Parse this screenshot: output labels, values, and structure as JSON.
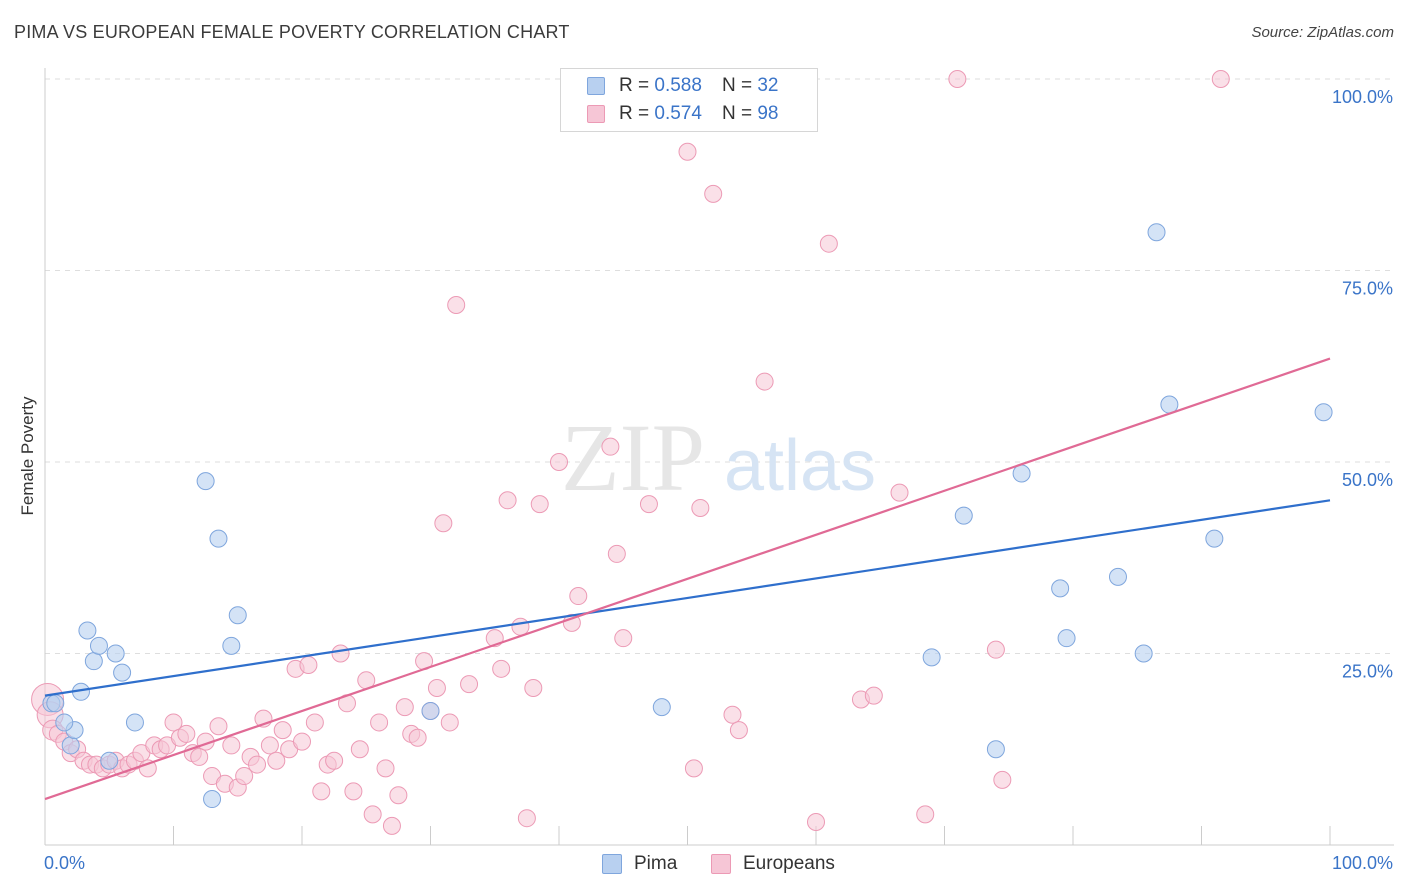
{
  "title": "PIMA VS EUROPEAN FEMALE POVERTY CORRELATION CHART",
  "source": "Source: ZipAtlas.com",
  "watermark": {
    "zip": "ZIP",
    "atlas": "atlas"
  },
  "legend_top": {
    "pima": {
      "r_label": "R =",
      "r_value": "0.588",
      "n_label": "N =",
      "n_value": "32"
    },
    "europeans": {
      "r_label": "R =",
      "r_value": "0.574",
      "n_label": "N =",
      "n_value": "98"
    }
  },
  "legend_bottom": {
    "pima": "Pima",
    "europeans": "Europeans"
  },
  "colors": {
    "pima_fill": "#b8d0f0",
    "pima_stroke": "#7fa6dd",
    "pima_line": "#2f6fcc",
    "eu_fill": "#f6c6d6",
    "eu_stroke": "#ec9ab5",
    "eu_line": "#e06a95",
    "tick_label": "#3a74c8",
    "grid": "#dedede"
  },
  "chart_data": {
    "type": "scatter",
    "title": "PIMA VS EUROPEAN FEMALE POVERTY CORRELATION CHART",
    "xlabel": "",
    "ylabel": "Female Poverty",
    "xlim": [
      0,
      100
    ],
    "ylim": [
      0,
      100
    ],
    "x_tick_labels": [
      "0.0%",
      "100.0%"
    ],
    "y_tick_labels": [
      "25.0%",
      "50.0%",
      "75.0%",
      "100.0%"
    ],
    "y_ticks": [
      25,
      50,
      75,
      100
    ],
    "grid": true,
    "legend_placement": "top-center and bottom-center",
    "series": [
      {
        "name": "Pima",
        "r": 0.588,
        "n": 32,
        "trend": {
          "x": [
            0,
            100
          ],
          "y": [
            19.5,
            45
          ]
        },
        "points": [
          [
            0.5,
            18.5
          ],
          [
            0.8,
            18.5
          ],
          [
            2.0,
            13
          ],
          [
            2.3,
            15
          ],
          [
            2.8,
            20
          ],
          [
            3.3,
            28
          ],
          [
            3.8,
            24
          ],
          [
            4.2,
            26
          ],
          [
            5.5,
            25
          ],
          [
            6.0,
            22.5
          ],
          [
            7.0,
            16
          ],
          [
            12.5,
            47.5
          ],
          [
            13.0,
            6
          ],
          [
            13.5,
            40
          ],
          [
            14.5,
            26
          ],
          [
            15.0,
            30
          ],
          [
            5.0,
            11
          ],
          [
            30.0,
            17.5
          ],
          [
            48.0,
            18
          ],
          [
            69.0,
            24.5
          ],
          [
            71.5,
            43
          ],
          [
            74.0,
            12.5
          ],
          [
            76.0,
            48.5
          ],
          [
            79.0,
            33.5
          ],
          [
            79.5,
            27
          ],
          [
            83.5,
            35
          ],
          [
            85.5,
            25
          ],
          [
            86.5,
            80
          ],
          [
            87.5,
            57.5
          ],
          [
            91.0,
            40
          ],
          [
            99.5,
            56.5
          ],
          [
            1.5,
            16
          ]
        ]
      },
      {
        "name": "Europeans",
        "r": 0.574,
        "n": 98,
        "trend": {
          "x": [
            0,
            100
          ],
          "y": [
            6,
            63.5
          ]
        },
        "points": [
          [
            0.2,
            19
          ],
          [
            0.4,
            17
          ],
          [
            0.6,
            15
          ],
          [
            1.0,
            14.5
          ],
          [
            1.5,
            13.5
          ],
          [
            2.0,
            12
          ],
          [
            2.5,
            12.5
          ],
          [
            3.0,
            11
          ],
          [
            3.5,
            10.5
          ],
          [
            4.0,
            10.5
          ],
          [
            4.5,
            10
          ],
          [
            5.0,
            10.5
          ],
          [
            5.5,
            11
          ],
          [
            6.0,
            10
          ],
          [
            6.5,
            10.5
          ],
          [
            7.0,
            11
          ],
          [
            7.5,
            12
          ],
          [
            8.0,
            10
          ],
          [
            8.5,
            13
          ],
          [
            9.0,
            12.5
          ],
          [
            9.5,
            13
          ],
          [
            10.0,
            16
          ],
          [
            10.5,
            14
          ],
          [
            11.0,
            14.5
          ],
          [
            11.5,
            12
          ],
          [
            12.0,
            11.5
          ],
          [
            12.5,
            13.5
          ],
          [
            13.0,
            9
          ],
          [
            13.5,
            15.5
          ],
          [
            14.0,
            8
          ],
          [
            14.5,
            13
          ],
          [
            15.0,
            7.5
          ],
          [
            15.5,
            9
          ],
          [
            16.0,
            11.5
          ],
          [
            16.5,
            10.5
          ],
          [
            17.0,
            16.5
          ],
          [
            17.5,
            13
          ],
          [
            18.0,
            11
          ],
          [
            18.5,
            15
          ],
          [
            19.0,
            12.5
          ],
          [
            19.5,
            23
          ],
          [
            20.0,
            13.5
          ],
          [
            20.5,
            23.5
          ],
          [
            21.0,
            16
          ],
          [
            21.5,
            7
          ],
          [
            22.0,
            10.5
          ],
          [
            22.5,
            11
          ],
          [
            23.0,
            25
          ],
          [
            23.5,
            18.5
          ],
          [
            24.0,
            7
          ],
          [
            24.5,
            12.5
          ],
          [
            25.0,
            21.5
          ],
          [
            25.5,
            4
          ],
          [
            26.0,
            16
          ],
          [
            26.5,
            10
          ],
          [
            27.0,
            2.5
          ],
          [
            27.5,
            6.5
          ],
          [
            28.0,
            18
          ],
          [
            28.5,
            14.5
          ],
          [
            29.0,
            14
          ],
          [
            29.5,
            24
          ],
          [
            30.0,
            17.5
          ],
          [
            30.5,
            20.5
          ],
          [
            31.0,
            42
          ],
          [
            31.5,
            16
          ],
          [
            32.0,
            70.5
          ],
          [
            33.0,
            21
          ],
          [
            35.0,
            27
          ],
          [
            35.5,
            23
          ],
          [
            36.0,
            45
          ],
          [
            37.0,
            28.5
          ],
          [
            37.5,
            3.5
          ],
          [
            38.0,
            20.5
          ],
          [
            38.5,
            44.5
          ],
          [
            40.0,
            50
          ],
          [
            41.0,
            29
          ],
          [
            41.5,
            32.5
          ],
          [
            44.0,
            52
          ],
          [
            44.5,
            38
          ],
          [
            45.0,
            27
          ],
          [
            47.0,
            44.5
          ],
          [
            50.0,
            90.5
          ],
          [
            50.5,
            10
          ],
          [
            51.0,
            44
          ],
          [
            52.0,
            85
          ],
          [
            53.5,
            17
          ],
          [
            54.0,
            15
          ],
          [
            56.0,
            60.5
          ],
          [
            60.0,
            3
          ],
          [
            61.0,
            78.5
          ],
          [
            63.5,
            19
          ],
          [
            64.5,
            19.5
          ],
          [
            66.5,
            46
          ],
          [
            68.5,
            4
          ],
          [
            71.0,
            100
          ],
          [
            74.0,
            25.5
          ],
          [
            74.5,
            8.5
          ],
          [
            91.5,
            100
          ]
        ]
      }
    ]
  }
}
